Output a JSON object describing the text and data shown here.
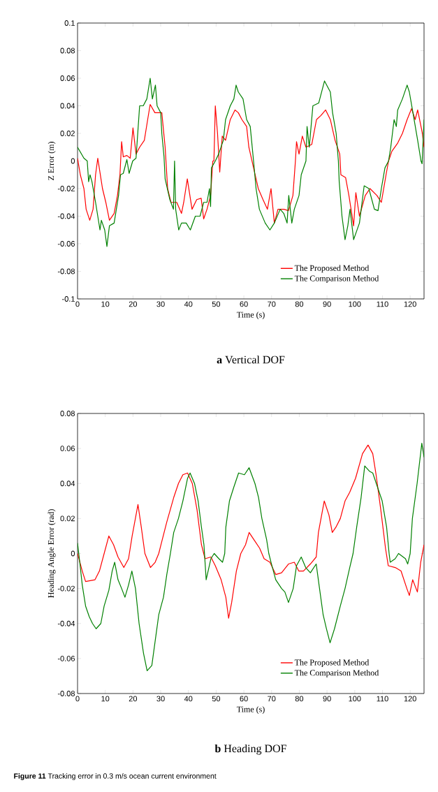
{
  "chart_data": [
    {
      "type": "line",
      "title": "**a** Vertical DOF",
      "xlabel": "Time (s)",
      "ylabel": "Z Error (m)",
      "xlim": [
        0,
        125
      ],
      "ylim": [
        -0.1,
        0.1
      ],
      "xticks": [
        0,
        10,
        20,
        30,
        40,
        50,
        60,
        70,
        80,
        90,
        100,
        110,
        120
      ],
      "yticks": [
        -0.1,
        -0.08,
        -0.06,
        -0.04,
        -0.02,
        0,
        0.02,
        0.04,
        0.06,
        0.08,
        0.1
      ],
      "grid": false,
      "legend": "bottom right",
      "marker": "none",
      "line_style": "solid",
      "series": [
        {
          "name": "The Proposed Method",
          "color": "#ff0000",
          "x": [
            0,
            1,
            2.3,
            3.1,
            4.4,
            5.6,
            6.5,
            7.3,
            9,
            10.2,
            11.5,
            13.2,
            14.4,
            15.3,
            15.9,
            16.5,
            17.8,
            19,
            20,
            21.1,
            22.4,
            24.1,
            25.3,
            26.2,
            27.9,
            29.1,
            30.4,
            31.6,
            32.5,
            33.7,
            35.8,
            37.5,
            38.3,
            39.6,
            41.3,
            43,
            44.6,
            45.5,
            46.7,
            48,
            48.8,
            49.2,
            49.7,
            50.5,
            51.3,
            52.2,
            53.4,
            55.1,
            56.8,
            58,
            59.3,
            61,
            61.8,
            63.5,
            65.2,
            66.9,
            68.5,
            69.8,
            71,
            72.3,
            74.4,
            76.1,
            77.7,
            78.6,
            79,
            79.9,
            81.1,
            82.4,
            84.5,
            86.2,
            87.8,
            89.5,
            91.2,
            92.9,
            94.6,
            95,
            96.7,
            97.9,
            99.6,
            100.4,
            101.7,
            103.8,
            105.5,
            108,
            109.6,
            111.3,
            112.2,
            113.4,
            115.5,
            117.2,
            118.9,
            120.5,
            121.8,
            122.7,
            124.4,
            125
          ],
          "values": [
            0.002,
            -0.01,
            -0.02,
            -0.035,
            -0.043,
            -0.035,
            -0.01,
            0.002,
            -0.02,
            -0.03,
            -0.043,
            -0.038,
            -0.025,
            -0.01,
            0.014,
            0.003,
            0.004,
            0.002,
            0.024,
            0.005,
            0.01,
            0.015,
            0.03,
            0.041,
            0.035,
            0.035,
            0.035,
            0.01,
            -0.02,
            -0.03,
            -0.03,
            -0.038,
            -0.03,
            -0.013,
            -0.035,
            -0.028,
            -0.027,
            -0.042,
            -0.035,
            -0.025,
            0,
            0,
            0.04,
            0.02,
            -0.008,
            0.018,
            0.015,
            0.03,
            0.037,
            0.035,
            0.03,
            0.025,
            0.01,
            -0.005,
            -0.02,
            -0.028,
            -0.035,
            -0.02,
            -0.045,
            -0.035,
            -0.035,
            -0.036,
            -0.025,
            0,
            0.014,
            0.005,
            0.018,
            0.01,
            0.012,
            0.03,
            0.033,
            0.037,
            0.03,
            0.015,
            0.005,
            -0.01,
            -0.012,
            -0.025,
            -0.047,
            -0.023,
            -0.04,
            -0.025,
            -0.02,
            -0.025,
            -0.03,
            -0.01,
            0,
            0.007,
            0.013,
            0.02,
            0.03,
            0.038,
            0.03,
            0.037,
            0.02,
            0.01
          ]
        },
        {
          "name": "The Comparison Method",
          "color": "#008000",
          "x": [
            0,
            2.3,
            3.5,
            4,
            4.5,
            5.2,
            6.5,
            8.1,
            8.6,
            9.8,
            10.6,
            11.5,
            13.2,
            14.8,
            15.5,
            16.5,
            17.8,
            18.6,
            19.9,
            21.1,
            22.4,
            23.7,
            25,
            26.2,
            27,
            28.1,
            28.7,
            30,
            30.4,
            31.2,
            31.6,
            33.3,
            34.6,
            35,
            35.4,
            36.5,
            37.5,
            39.2,
            40.7,
            42.5,
            44.2,
            45.5,
            46.7,
            47.6,
            48,
            48.3,
            49.7,
            50.9,
            52.6,
            53.4,
            55.1,
            56.4,
            57.2,
            58,
            59.7,
            61,
            62.3,
            63.5,
            64.4,
            65.6,
            67.7,
            69.4,
            71,
            73.1,
            74.4,
            75.6,
            76.2,
            77.3,
            78.2,
            79.9,
            80.7,
            82.4,
            82.8,
            83.6,
            84.9,
            87,
            88.7,
            89.1,
            91.2,
            92,
            93.3,
            94.1,
            94.4,
            95.4,
            96.5,
            97.5,
            98.3,
            99.6,
            101.7,
            103.4,
            105.1,
            107.1,
            108.4,
            109.6,
            110.9,
            112.2,
            113,
            114.2,
            115,
            115.5,
            117.2,
            118.9,
            119.7,
            121,
            122.7,
            123.9,
            124.3,
            125
          ],
          "values": [
            0.01,
            0.002,
            0,
            -0.015,
            -0.01,
            -0.015,
            -0.03,
            -0.05,
            -0.043,
            -0.05,
            -0.062,
            -0.047,
            -0.045,
            -0.025,
            -0.01,
            -0.009,
            0.001,
            -0.009,
            0,
            0.002,
            0.04,
            0.04,
            0.045,
            0.06,
            0.045,
            0.055,
            0.04,
            0.035,
            0.02,
            0.003,
            -0.013,
            -0.028,
            -0.035,
            0,
            -0.035,
            -0.05,
            -0.045,
            -0.045,
            -0.05,
            -0.04,
            -0.04,
            -0.03,
            -0.03,
            -0.02,
            -0.033,
            -0.005,
            0,
            0.005,
            0.015,
            0.03,
            0.04,
            0.045,
            0.055,
            0.05,
            0.045,
            0.03,
            0.025,
            0,
            -0.02,
            -0.035,
            -0.045,
            -0.05,
            -0.045,
            -0.035,
            -0.038,
            -0.045,
            -0.025,
            -0.045,
            -0.035,
            -0.025,
            -0.01,
            0,
            0.025,
            0.01,
            0.04,
            0.042,
            0.055,
            0.058,
            0.05,
            0.035,
            0.02,
            0,
            -0.015,
            -0.04,
            -0.057,
            -0.047,
            -0.035,
            -0.057,
            -0.045,
            -0.018,
            -0.02,
            -0.035,
            -0.036,
            -0.02,
            -0.005,
            0,
            0.01,
            0.03,
            0.025,
            0.037,
            0.045,
            0.055,
            0.05,
            0.035,
            0.015,
            0,
            -0.002,
            0.03
          ]
        }
      ]
    },
    {
      "type": "line",
      "title": "**b** Heading DOF",
      "xlabel": "Time (s)",
      "ylabel": "Heading Angle Error (rad)",
      "xlim": [
        0,
        125
      ],
      "ylim": [
        -0.08,
        0.08
      ],
      "xticks": [
        0,
        10,
        20,
        30,
        40,
        50,
        60,
        70,
        80,
        90,
        100,
        110,
        120
      ],
      "yticks": [
        -0.08,
        -0.06,
        -0.04,
        -0.02,
        0,
        0.02,
        0.04,
        0.06,
        0.08
      ],
      "grid": false,
      "legend": "bottom right",
      "marker": "none",
      "line_style": "solid",
      "annotations": [
        "**Figure 11** Tracking error in 0.3 m/s ocean current environment"
      ],
      "series": [
        {
          "name": "The Proposed Method",
          "color": "#ff0000",
          "x": [
            0,
            1.7,
            2.9,
            6.3,
            7.9,
            9.6,
            11.3,
            13,
            14.6,
            16.7,
            18.4,
            19.7,
            21.8,
            23,
            24.3,
            26.3,
            28,
            29.3,
            30.1,
            32.2,
            34.7,
            36.4,
            38,
            39.7,
            41.4,
            43.1,
            44.7,
            46,
            48.1,
            49.7,
            51.8,
            53.5,
            54.5,
            55.6,
            57.3,
            58.9,
            60.6,
            61.9,
            64,
            65.7,
            67.3,
            69.4,
            71.5,
            73.6,
            76.1,
            78.2,
            79.8,
            81.5,
            84,
            86.1,
            86.9,
            89,
            90.7,
            91.9,
            93.2,
            94.8,
            96.5,
            98.2,
            100.3,
            102.8,
            104.8,
            106.5,
            107.7,
            109.4,
            111.1,
            112.1,
            114.6,
            116.7,
            118.8,
            119.7,
            120.9,
            122.6,
            123.8,
            125
          ],
          "values": [
            0,
            -0.01,
            -0.016,
            -0.015,
            -0.01,
            0,
            0.01,
            0.005,
            -0.002,
            -0.008,
            -0.003,
            0.01,
            0.028,
            0.015,
            0,
            -0.008,
            -0.005,
            0,
            0.005,
            0.018,
            0.032,
            0.04,
            0.045,
            0.046,
            0.04,
            0.025,
            0.005,
            -0.003,
            -0.002,
            -0.007,
            -0.015,
            -0.025,
            -0.037,
            -0.028,
            -0.01,
            0,
            0.005,
            0.012,
            0.007,
            0.003,
            -0.003,
            -0.005,
            -0.012,
            -0.011,
            -0.006,
            -0.005,
            -0.01,
            -0.01,
            -0.006,
            -0.002,
            0.012,
            0.03,
            0.022,
            0.012,
            0.015,
            0.02,
            0.03,
            0.035,
            0.043,
            0.057,
            0.062,
            0.057,
            0.045,
            0.025,
            0.003,
            -0.007,
            -0.008,
            -0.01,
            -0.02,
            -0.024,
            -0.015,
            -0.022,
            -0.005,
            0.005
          ]
        },
        {
          "name": "The Comparison Method",
          "color": "#008000",
          "x": [
            0,
            0.8,
            1.7,
            2.9,
            4.2,
            5.4,
            6.7,
            8.4,
            9.6,
            11.3,
            12.5,
            13.4,
            14.6,
            15.9,
            17.1,
            18.4,
            19.6,
            20.9,
            22.2,
            23.8,
            25.1,
            26.8,
            28,
            29.3,
            31,
            32.2,
            33.5,
            34.7,
            36.4,
            38,
            39.7,
            40.6,
            42.2,
            43.5,
            44.7,
            45.6,
            46.4,
            48.1,
            49.3,
            51,
            52.3,
            53.1,
            53.5,
            54.8,
            56.4,
            58.1,
            60.2,
            61.9,
            64,
            65.3,
            66.5,
            68.2,
            69,
            69.8,
            71.5,
            73.6,
            74.8,
            76.1,
            77.8,
            79,
            80.7,
            82.3,
            84,
            86.1,
            87.3,
            88.6,
            89.8,
            91.1,
            92.7,
            94.8,
            96.5,
            98.2,
            99.4,
            100.7,
            102.3,
            103.6,
            105.3,
            106.5,
            108.2,
            109.9,
            111.5,
            112.4,
            112.8,
            114.6,
            115.8,
            118.3,
            119.1,
            120,
            120.8,
            122.5,
            124.2,
            125
          ],
          "values": [
            0.006,
            -0.005,
            -0.018,
            -0.03,
            -0.036,
            -0.04,
            -0.043,
            -0.04,
            -0.03,
            -0.021,
            -0.01,
            -0.005,
            -0.015,
            -0.02,
            -0.025,
            -0.018,
            -0.01,
            -0.02,
            -0.04,
            -0.057,
            -0.067,
            -0.064,
            -0.05,
            -0.035,
            -0.025,
            -0.012,
            0,
            0.012,
            0.02,
            0.03,
            0.043,
            0.046,
            0.04,
            0.03,
            0.015,
            0.005,
            -0.015,
            -0.003,
            0,
            -0.003,
            -0.005,
            0,
            0.015,
            0.03,
            0.038,
            0.046,
            0.045,
            0.049,
            0.04,
            0.032,
            0.02,
            0.008,
            0,
            -0.005,
            -0.015,
            -0.02,
            -0.022,
            -0.028,
            -0.02,
            -0.007,
            -0.002,
            -0.008,
            -0.011,
            -0.006,
            -0.02,
            -0.035,
            -0.043,
            -0.051,
            -0.043,
            -0.03,
            -0.02,
            -0.008,
            0,
            0.015,
            0.032,
            0.05,
            0.047,
            0.046,
            0.038,
            0.03,
            0.015,
            0,
            -0.005,
            -0.003,
            0,
            -0.003,
            -0.006,
            0,
            0.02,
            0.04,
            0.063,
            0.055
          ]
        }
      ]
    }
  ]
}
